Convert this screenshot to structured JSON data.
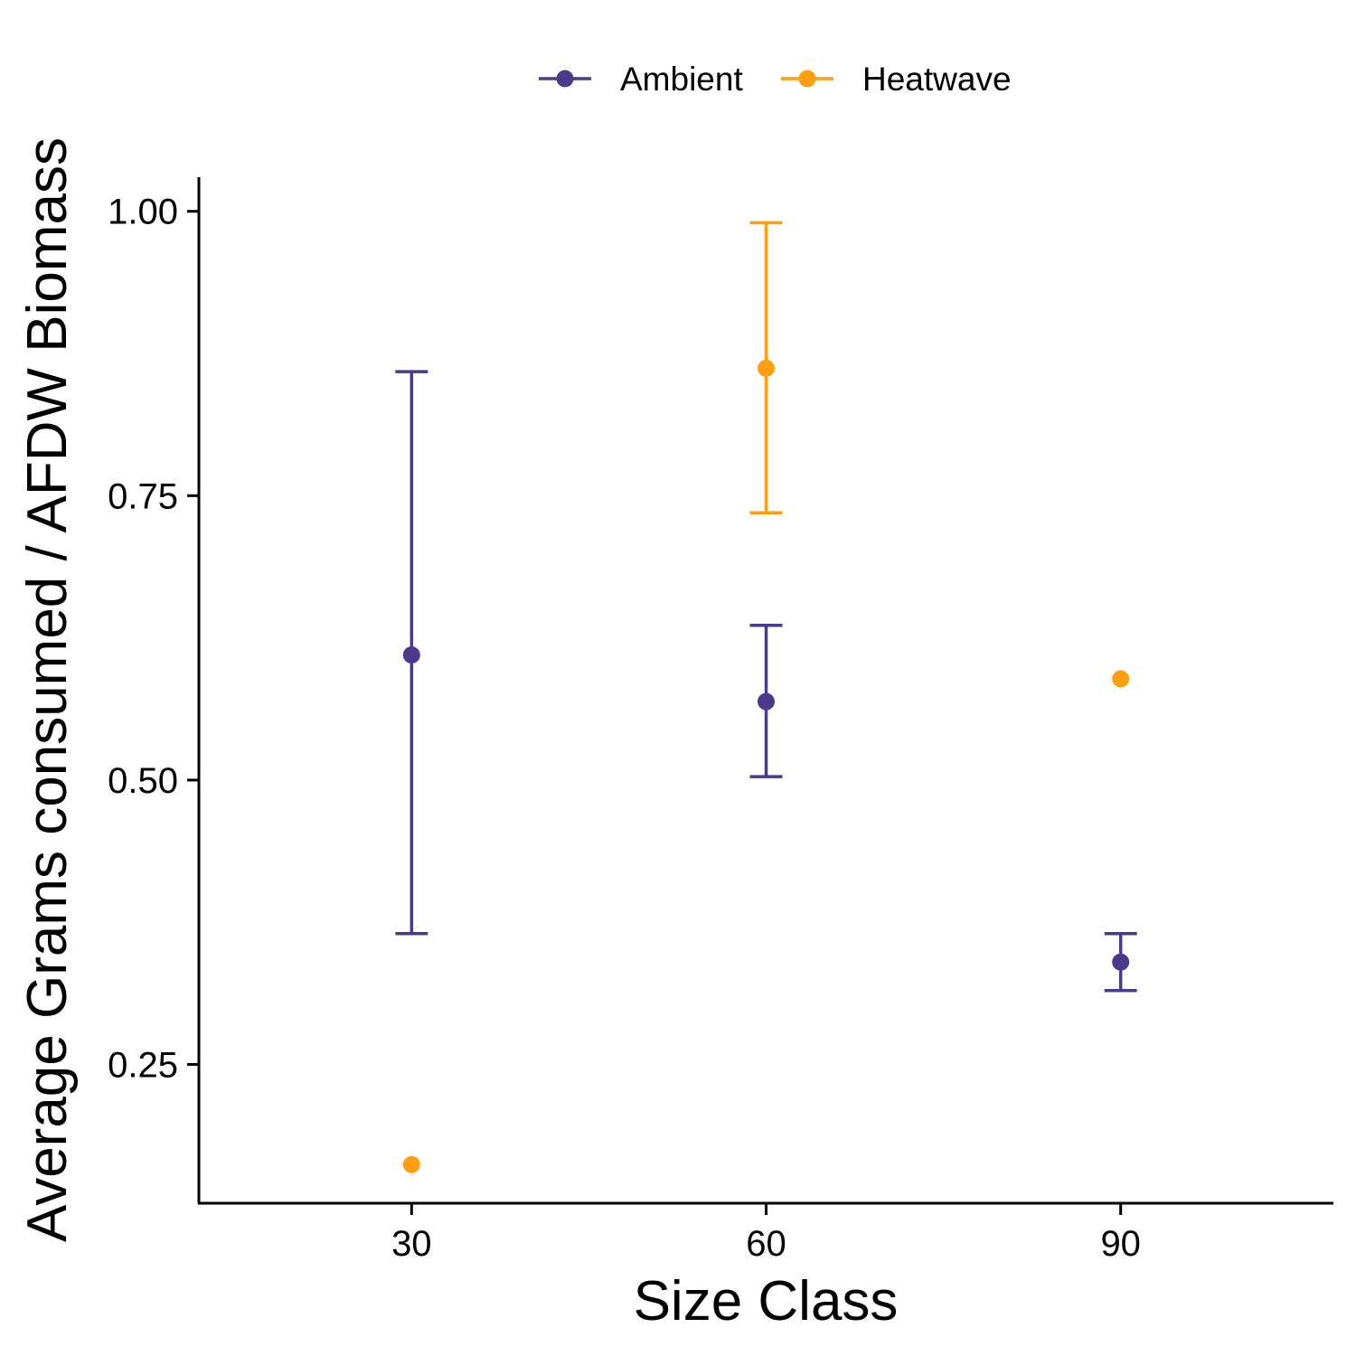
{
  "chart_data": {
    "type": "scatter",
    "xlabel": "Size Class",
    "ylabel": "Average Grams consumed / AFDW Biomass",
    "x_ticks": [
      30,
      60,
      90
    ],
    "y_ticks": [
      "0.25",
      "0.50",
      "0.75",
      "1.00"
    ],
    "xlim": [
      12,
      108
    ],
    "ylim": [
      0.128,
      1.03
    ],
    "legend_position": "top",
    "series": [
      {
        "name": "Ambient",
        "color": "#4b3a8c",
        "points": [
          {
            "x": 30,
            "y": 0.61,
            "ymin": 0.365,
            "ymax": 0.859
          },
          {
            "x": 60,
            "y": 0.569,
            "ymin": 0.503,
            "ymax": 0.636
          },
          {
            "x": 90,
            "y": 0.34,
            "ymin": 0.315,
            "ymax": 0.365
          }
        ]
      },
      {
        "name": "Heatwave",
        "color": "#ff9e0e",
        "points": [
          {
            "x": 30,
            "y": 0.162
          },
          {
            "x": 60,
            "y": 0.862,
            "ymin": 0.735,
            "ymax": 0.99
          },
          {
            "x": 90,
            "y": 0.589
          }
        ]
      }
    ]
  }
}
